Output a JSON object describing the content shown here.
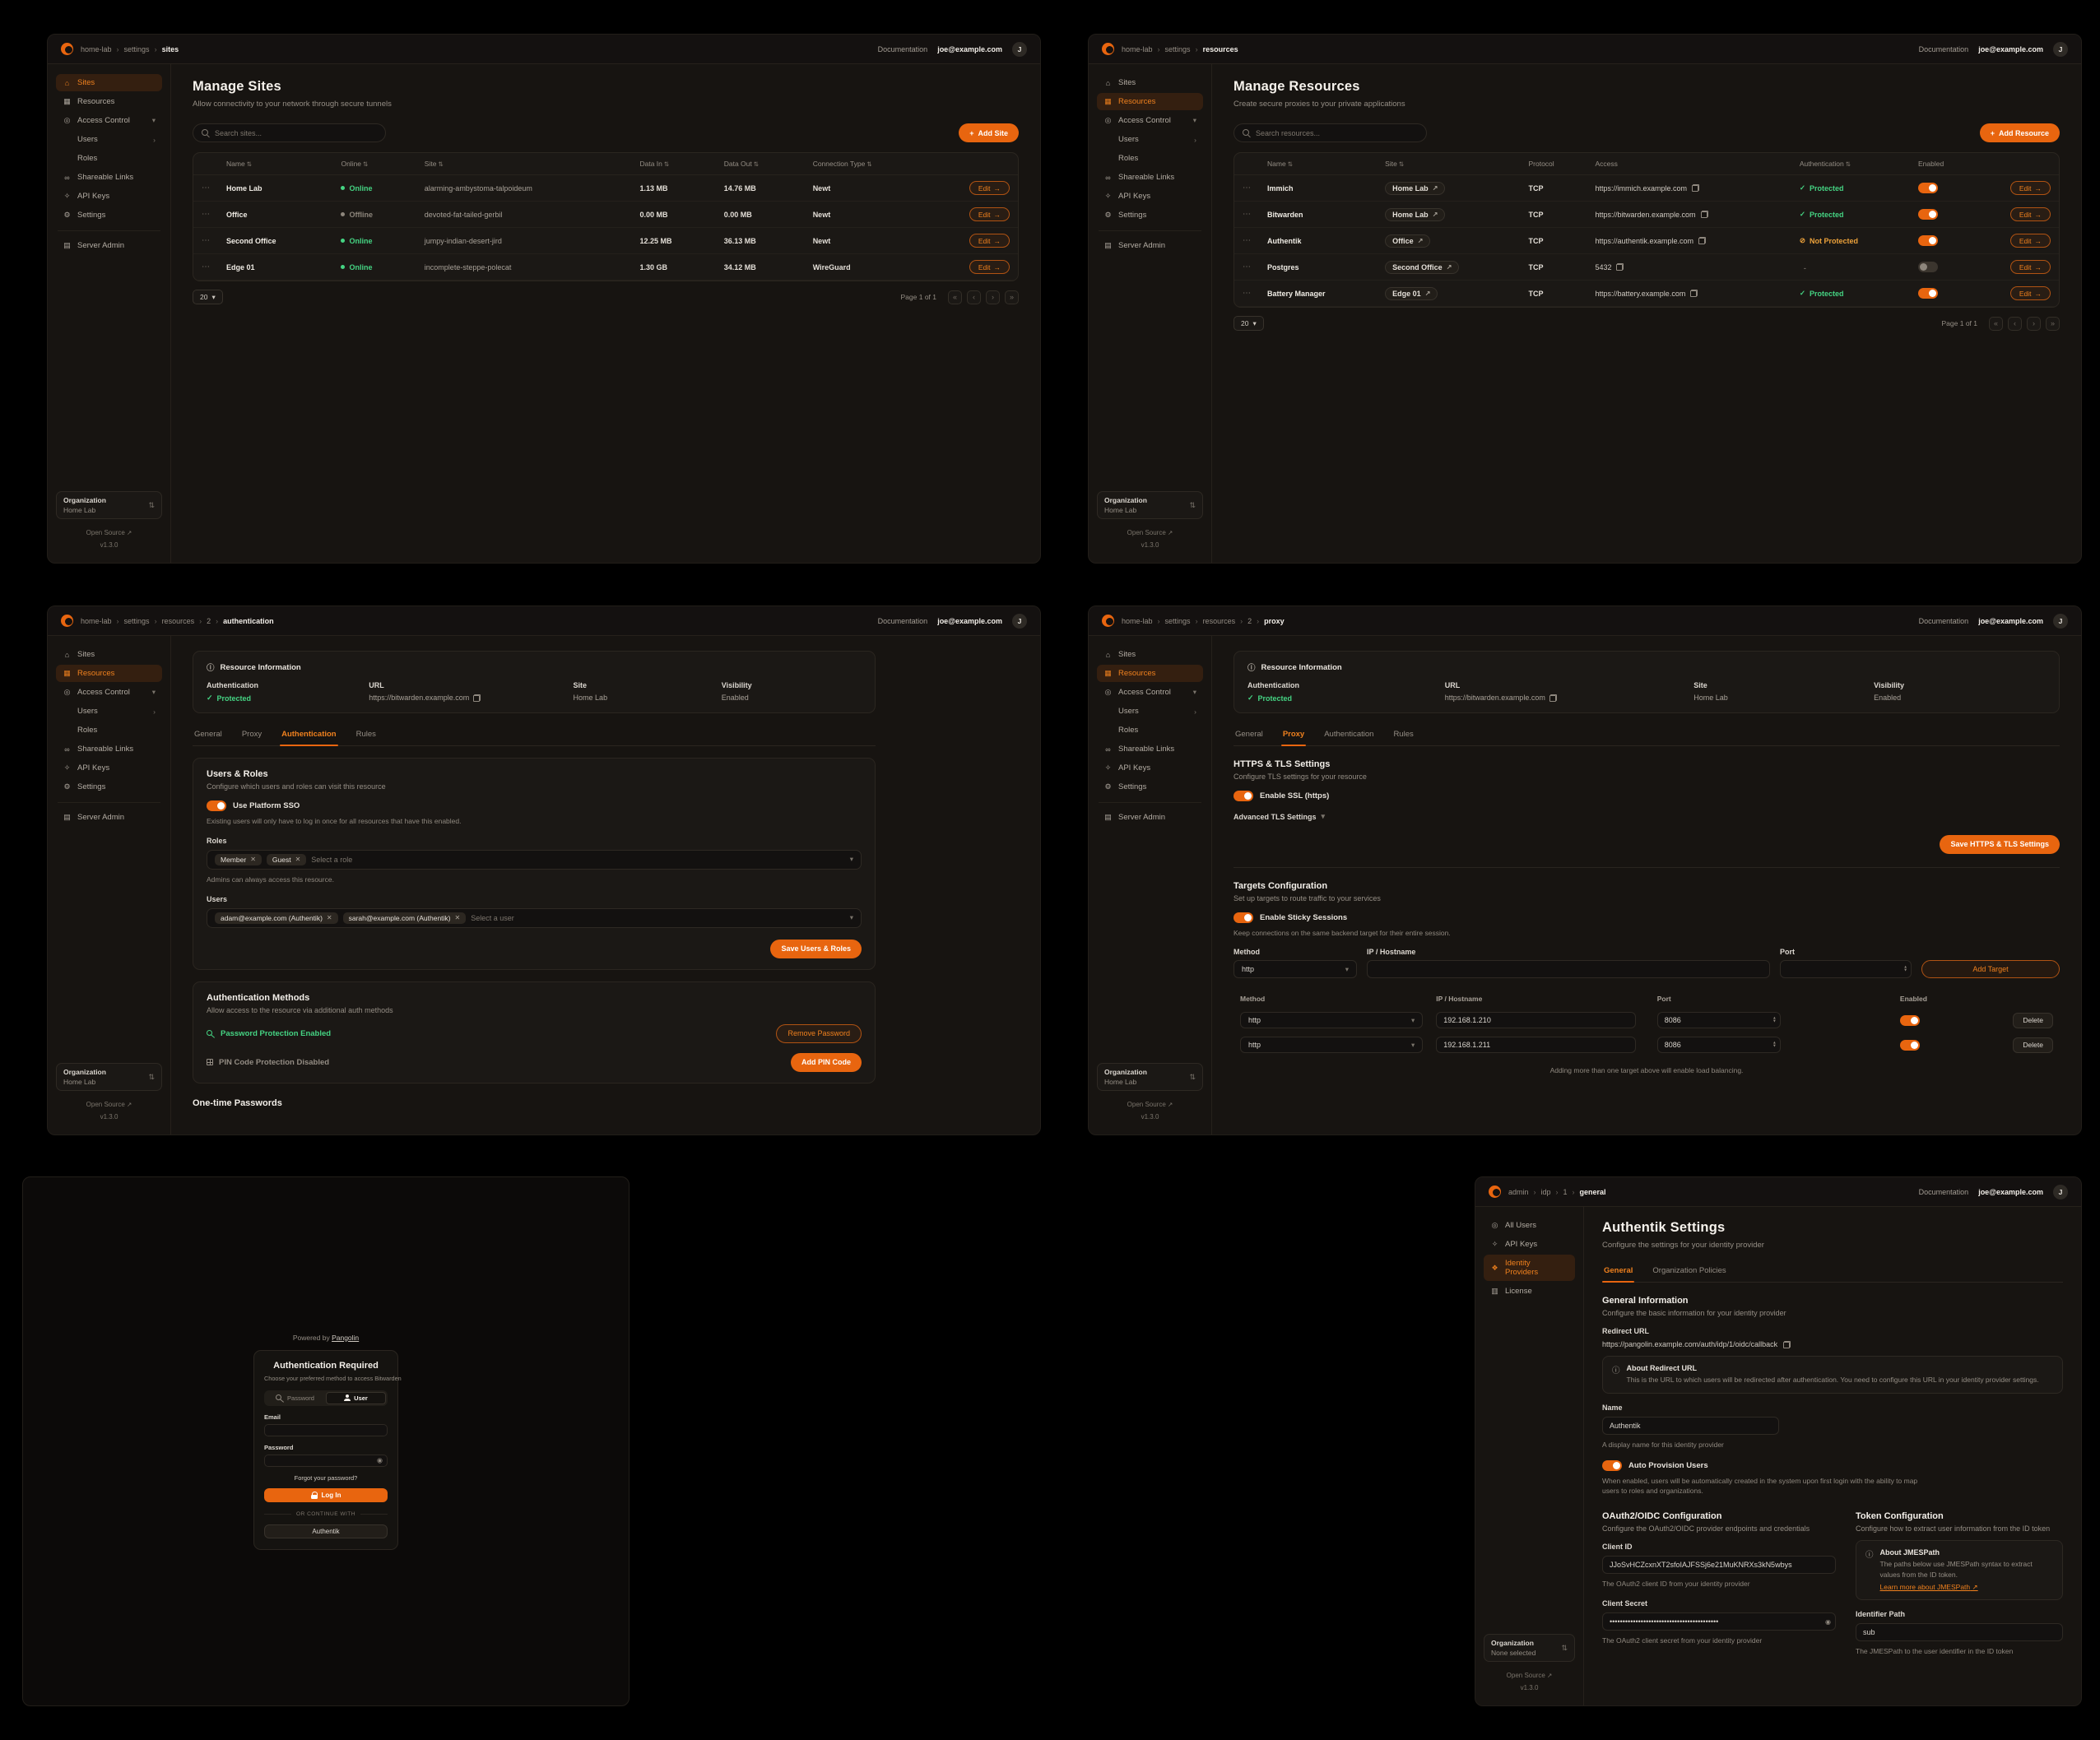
{
  "theme": {
    "accent": "#e8650f",
    "accent_text": "#f0811e",
    "green": "#45d483",
    "warn": "#eda23b"
  },
  "topbar": {
    "documentation": "Documentation",
    "email": "joe@example.com",
    "avatar": "J"
  },
  "org_footer": {
    "label": "Organization",
    "name": "Home Lab",
    "open_source": "Open Source",
    "version": "v1.3.0"
  },
  "pagination": {
    "rows_per_page": "20",
    "page_info": "Page 1 of 1"
  },
  "table": {
    "edit": "Edit"
  },
  "icons": {
    "plus": "+",
    "sort": "⇅",
    "external": "↗",
    "arrow_right": "→",
    "chev_down": "▾",
    "crumb_sep": "›",
    "pg_first": "«",
    "pg_prev": "‹",
    "pg_next": "›",
    "pg_last": "»",
    "ellipsis": "⋯",
    "check": "✓",
    "shield_off": "⊘",
    "info": "ⓘ",
    "updown": "⇅",
    "eye": "◉",
    "x": "✕",
    "step_up": "▴",
    "step_down": "▾"
  },
  "sidebar_sites": [
    {
      "label": "Sites",
      "icon": "⌂",
      "icon_name": "sites-icon",
      "cls": "active"
    },
    {
      "label": "Resources",
      "icon": "▦",
      "icon_name": "resources-icon"
    },
    {
      "label": "Access Control",
      "icon": "◎",
      "icon_name": "access-control-icon",
      "chevron": "▾"
    },
    {
      "label": "Users",
      "icon": "",
      "icon_name": "users-icon",
      "cls": "sub",
      "chevron": "›"
    },
    {
      "label": "Roles",
      "icon": "",
      "icon_name": "roles-icon",
      "cls": "sub"
    },
    {
      "label": "Shareable Links",
      "icon": "∞",
      "icon_name": "shareable-links-icon"
    },
    {
      "label": "API Keys",
      "icon": "✧",
      "icon_name": "api-keys-icon"
    },
    {
      "label": "Settings",
      "icon": "⚙",
      "icon_name": "settings-icon"
    },
    {
      "label": "Server Admin",
      "icon": "▤",
      "icon_name": "server-admin-icon",
      "cls": "sep"
    }
  ],
  "sidebar_resources": [
    {
      "label": "Sites",
      "icon": "⌂",
      "icon_name": "sites-icon"
    },
    {
      "label": "Resources",
      "icon": "▦",
      "icon_name": "resources-icon",
      "cls": "active"
    },
    {
      "label": "Access Control",
      "icon": "◎",
      "icon_name": "access-control-icon",
      "chevron": "▾"
    },
    {
      "label": "Users",
      "icon": "",
      "icon_name": "users-icon",
      "cls": "sub",
      "chevron": "›"
    },
    {
      "label": "Roles",
      "icon": "",
      "icon_name": "roles-icon",
      "cls": "sub"
    },
    {
      "label": "Shareable Links",
      "icon": "∞",
      "icon_name": "shareable-links-icon"
    },
    {
      "label": "API Keys",
      "icon": "✧",
      "icon_name": "api-keys-icon"
    },
    {
      "label": "Settings",
      "icon": "⚙",
      "icon_name": "settings-icon"
    },
    {
      "label": "Server Admin",
      "icon": "▤",
      "icon_name": "server-admin-icon",
      "cls": "sep"
    }
  ],
  "sites": {
    "breadcrumb": [
      "home-lab",
      "settings",
      "sites"
    ],
    "title": "Manage Sites",
    "subtitle": "Allow connectivity to your network through secure tunnels",
    "search_placeholder": "Search sites...",
    "add_button": "Add Site",
    "columns": [
      {
        "label": "Name",
        "cls": "sortable"
      },
      {
        "label": "Online",
        "cls": "sortable"
      },
      {
        "label": "Site",
        "cls": "sortable"
      },
      {
        "label": "Data In",
        "cls": "sortable"
      },
      {
        "label": "Data Out",
        "cls": "sortable"
      },
      {
        "label": "Connection Type",
        "cls": "sortable"
      }
    ],
    "rows": [
      {
        "name": "Home Lab",
        "status": "Online",
        "status_cls": "online",
        "site": "alarming-ambystoma-talpoideum",
        "data_in": "1.13 MB",
        "data_out": "14.76 MB",
        "type": "Newt"
      },
      {
        "name": "Office",
        "status": "Offline",
        "status_cls": "offline",
        "site": "devoted-fat-tailed-gerbil",
        "data_in": "0.00 MB",
        "data_out": "0.00 MB",
        "type": "Newt"
      },
      {
        "name": "Second Office",
        "status": "Online",
        "status_cls": "online",
        "site": "jumpy-indian-desert-jird",
        "data_in": "12.25 MB",
        "data_out": "36.13 MB",
        "type": "Newt"
      },
      {
        "name": "Edge 01",
        "status": "Online",
        "status_cls": "online",
        "site": "incomplete-steppe-polecat",
        "data_in": "1.30 GB",
        "data_out": "34.12 MB",
        "type": "WireGuard"
      }
    ]
  },
  "resources": {
    "breadcrumb": [
      "home-lab",
      "settings",
      "resources"
    ],
    "title": "Manage Resources",
    "subtitle": "Create secure proxies to your private applications",
    "search_placeholder": "Search resources...",
    "add_button": "Add Resource",
    "columns": [
      {
        "label": "Name",
        "cls": "sortable"
      },
      {
        "label": "Site",
        "cls": "sortable"
      },
      {
        "label": "Protocol"
      },
      {
        "label": "Access"
      },
      {
        "label": "Authentication",
        "cls": "sortable"
      },
      {
        "label": "Enabled"
      }
    ],
    "rows": [
      {
        "name": "Immich",
        "site": "Home Lab",
        "protocol": "TCP",
        "access": "https://immich.example.com",
        "auth": "Protected",
        "auth_cls": "protected",
        "auth_icon": "✓",
        "tog": "on"
      },
      {
        "name": "Bitwarden",
        "site": "Home Lab",
        "protocol": "TCP",
        "access": "https://bitwarden.example.com",
        "auth": "Protected",
        "auth_cls": "protected",
        "auth_icon": "✓",
        "tog": "on"
      },
      {
        "name": "Authentik",
        "site": "Office",
        "protocol": "TCP",
        "access": "https://authentik.example.com",
        "auth": "Not Protected",
        "auth_cls": "notprotected",
        "auth_icon": "⊘",
        "tog": "on"
      },
      {
        "name": "Postgres",
        "site": "Second Office",
        "protocol": "TCP",
        "access": "5432",
        "auth": "-",
        "auth_cls": "none",
        "auth_icon": "",
        "tog": "off"
      },
      {
        "name": "Battery Manager",
        "site": "Edge 01",
        "protocol": "TCP",
        "access": "https://battery.example.com",
        "auth": "Protected",
        "auth_cls": "protected",
        "auth_icon": "✓",
        "tog": "on"
      }
    ]
  },
  "resource_info": {
    "title": "Resource Information",
    "auth_label": "Authentication",
    "auth_value": "Protected",
    "url_label": "URL",
    "url_value": "https://bitwarden.example.com",
    "site_label": "Site",
    "site_value": "Home Lab",
    "vis_label": "Visibility",
    "vis_value": "Enabled"
  },
  "resource_auth": {
    "breadcrumb": [
      "home-lab",
      "settings",
      "resources",
      "2",
      "authentication"
    ],
    "tabs": [
      {
        "label": "General"
      },
      {
        "label": "Proxy"
      },
      {
        "label": "Authentication",
        "cls": "active"
      },
      {
        "label": "Rules"
      }
    ],
    "users_roles": {
      "title": "Users & Roles",
      "subtitle": "Configure which users and roles can visit this resource",
      "sso_toggle": "Use Platform SSO",
      "sso_note": "Existing users will only have to log in once for all resources that have this enabled.",
      "roles_label": "Roles",
      "role_chips": [
        "Member",
        "Guest"
      ],
      "roles_placeholder": "Select a role",
      "roles_note": "Admins can always access this resource.",
      "users_label": "Users",
      "user_chips": [
        "adam@example.com (Authentik)",
        "sarah@example.com (Authentik)"
      ],
      "users_placeholder": "Select a user",
      "save_button": "Save Users & Roles"
    },
    "auth_methods": {
      "title": "Authentication Methods",
      "subtitle": "Allow access to the resource via additional auth methods",
      "password_status": "Password Protection Enabled",
      "remove_password": "Remove Password",
      "pin_status": "PIN Code Protection Disabled",
      "add_pin": "Add PIN Code"
    },
    "otp_title": "One-time Passwords"
  },
  "resource_proxy": {
    "breadcrumb": [
      "home-lab",
      "settings",
      "resources",
      "2",
      "proxy"
    ],
    "tabs": [
      {
        "label": "General"
      },
      {
        "label": "Proxy",
        "cls": "active"
      },
      {
        "label": "Authentication"
      },
      {
        "label": "Rules"
      }
    ],
    "tls": {
      "title": "HTTPS & TLS Settings",
      "subtitle": "Configure TLS settings for your resource",
      "ssl_toggle": "Enable SSL (https)",
      "advanced": "Advanced TLS Settings",
      "save_button": "Save HTTPS & TLS Settings"
    },
    "targets": {
      "title": "Targets Configuration",
      "subtitle": "Set up targets to route traffic to your services",
      "sticky_toggle": "Enable Sticky Sessions",
      "sticky_note": "Keep connections on the same backend target for their entire session.",
      "method_label": "Method",
      "ip_label": "IP / Hostname",
      "port_label": "Port",
      "method_value": "http",
      "add_button": "Add Target",
      "columns": [
        "Method",
        "IP / Hostname",
        "Port",
        "Enabled"
      ],
      "rows": [
        {
          "method": "http",
          "ip": "192.168.1.210",
          "port": "8086",
          "tog": "on"
        },
        {
          "method": "http",
          "ip": "192.168.1.211",
          "port": "8086",
          "tog": "on"
        }
      ],
      "delete_button": "Delete",
      "note": "Adding more than one target above will enable load balancing."
    }
  },
  "login": {
    "powered_by": "Powered by",
    "brand": "Pangolin",
    "title": "Authentication Required",
    "subtitle": "Choose your preferred method to access Bitwarden",
    "tab_password": "Password",
    "tab_user": "User",
    "email_label": "Email",
    "password_label": "Password",
    "forgot": "Forgot your password?",
    "login_button": "Log In",
    "divider": "OR CONTINUE WITH",
    "sso_button": "Authentik"
  },
  "idp": {
    "breadcrumb": [
      "admin",
      "idp",
      "1",
      "general"
    ],
    "sidebar": [
      {
        "label": "All Users",
        "icon": "◎",
        "icon_name": "all-users-icon"
      },
      {
        "label": "API Keys",
        "icon": "✧",
        "icon_name": "api-keys-icon"
      },
      {
        "label": "Identity Providers",
        "icon": "❖",
        "icon_name": "identity-providers-icon",
        "cls": "active"
      },
      {
        "label": "License",
        "icon": "▥",
        "icon_name": "license-icon"
      }
    ],
    "org": {
      "label": "Organization",
      "name": "None selected"
    },
    "title": "Authentik Settings",
    "subtitle": "Configure the settings for your identity provider",
    "tabs": [
      {
        "label": "General",
        "cls": "active"
      },
      {
        "label": "Organization Policies"
      }
    ],
    "general_info": {
      "title": "General Information",
      "subtitle": "Configure the basic information for your identity provider",
      "redirect_label": "Redirect URL",
      "redirect_value": "https://pangolin.example.com/auth/idp/1/oidc/callback",
      "about_title": "About Redirect URL",
      "about_text": "This is the URL to which users will be redirected after authentication. You need to configure this URL in your identity provider settings.",
      "name_label": "Name",
      "name_value": "Authentik",
      "name_help": "A display name for this identity provider",
      "auto_provision": "Auto Provision Users",
      "auto_provision_help": "When enabled, users will be automatically created in the system upon first login with the ability to map users to roles and organizations."
    },
    "oauth": {
      "title": "OAuth2/OIDC Configuration",
      "subtitle": "Configure the OAuth2/OIDC provider endpoints and credentials",
      "client_id_label": "Client ID",
      "client_id_value": "JJoSvHCZcxnXT2sfoIAJFSSj6e21MuKNRXs3kN5wbys",
      "client_id_help": "The OAuth2 client ID from your identity provider",
      "client_secret_label": "Client Secret",
      "client_secret_value": "••••••••••••••••••••••••••••••••••••••••••",
      "client_secret_help": "The OAuth2 client secret from your identity provider"
    },
    "token": {
      "title": "Token Configuration",
      "subtitle": "Configure how to extract user information from the ID token",
      "about_title": "About JMESPath",
      "about_text": "The paths below use JMESPath syntax to extract values from the ID token.",
      "learn_more": "Learn more about JMESPath",
      "identifier_label": "Identifier Path",
      "identifier_value": "sub",
      "identifier_help": "The JMESPath to the user identifier in the ID token"
    }
  }
}
